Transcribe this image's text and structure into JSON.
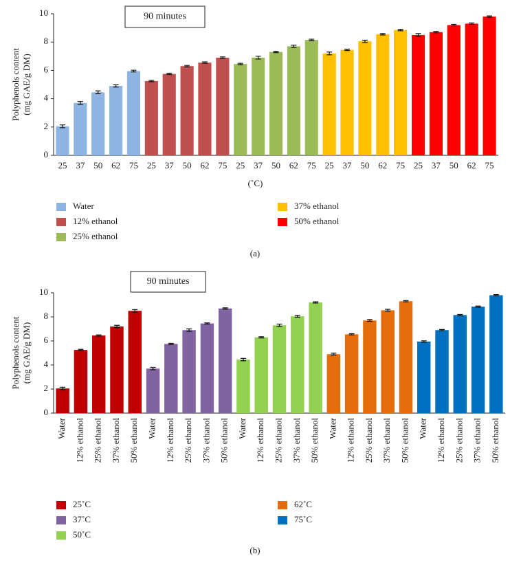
{
  "chart_data": [
    {
      "type": "bar",
      "title": "90 minutes",
      "ylabel": [
        "Polyphenols content",
        "(mg GAE/g DM)"
      ],
      "xlabel": "(˚C)",
      "caption": "(a)",
      "categories": [
        "25",
        "37",
        "50",
        "62",
        "75"
      ],
      "ylim": [
        0,
        10
      ],
      "yticks": [
        0,
        2,
        4,
        6,
        8,
        10
      ],
      "series": [
        {
          "name": "Water",
          "color": "#8db4e2",
          "values": [
            2.05,
            3.7,
            4.45,
            4.9,
            5.95
          ],
          "errors": [
            0.1,
            0.1,
            0.1,
            0.08,
            0.06
          ]
        },
        {
          "name": "12% ethanol",
          "color": "#c0504d",
          "values": [
            5.25,
            5.75,
            6.3,
            6.55,
            6.9
          ],
          "errors": [
            0.05,
            0.05,
            0.05,
            0.05,
            0.05
          ]
        },
        {
          "name": "25% ethanol",
          "color": "#9bbb59",
          "values": [
            6.45,
            6.9,
            7.3,
            7.7,
            8.15
          ],
          "errors": [
            0.05,
            0.1,
            0.05,
            0.08,
            0.05
          ]
        },
        {
          "name": "37% ethanol",
          "color": "#ffc000",
          "values": [
            7.2,
            7.45,
            8.05,
            8.55,
            8.85
          ],
          "errors": [
            0.1,
            0.05,
            0.08,
            0.05,
            0.05
          ]
        },
        {
          "name": "50% ethanol",
          "color": "#ff0000",
          "values": [
            8.5,
            8.7,
            9.2,
            9.3,
            9.8
          ],
          "errors": [
            0.1,
            0.05,
            0.05,
            0.05,
            0.05
          ]
        }
      ]
    },
    {
      "type": "bar",
      "title": "90 minutes",
      "ylabel": [
        "Polyphenols content",
        "(mg GAE/g DM)"
      ],
      "caption": "(b)",
      "categories": [
        "Water",
        "12% ethanol",
        "25% ethanol",
        "37% ethanol",
        "50% ethanol"
      ],
      "ylim": [
        0,
        10
      ],
      "yticks": [
        0,
        2,
        4,
        6,
        8,
        10
      ],
      "series": [
        {
          "name": "25˚C",
          "color": "#c00000",
          "values": [
            2.05,
            5.25,
            6.45,
            7.2,
            8.5
          ],
          "errors": [
            0.1,
            0.05,
            0.05,
            0.1,
            0.1
          ]
        },
        {
          "name": "37˚C",
          "color": "#8064a2",
          "values": [
            3.7,
            5.75,
            6.9,
            7.45,
            8.7
          ],
          "errors": [
            0.1,
            0.05,
            0.1,
            0.05,
            0.05
          ]
        },
        {
          "name": "50˚C",
          "color": "#92d050",
          "values": [
            4.45,
            6.3,
            7.3,
            8.05,
            9.2
          ],
          "errors": [
            0.1,
            0.05,
            0.1,
            0.08,
            0.05
          ]
        },
        {
          "name": "62˚C",
          "color": "#e46c0a",
          "values": [
            4.9,
            6.55,
            7.7,
            8.55,
            9.3
          ],
          "errors": [
            0.08,
            0.05,
            0.08,
            0.08,
            0.05
          ]
        },
        {
          "name": "75˚C",
          "color": "#0070c0",
          "values": [
            5.95,
            6.9,
            8.15,
            8.85,
            9.8
          ],
          "errors": [
            0.06,
            0.05,
            0.05,
            0.05,
            0.05
          ]
        }
      ]
    }
  ]
}
